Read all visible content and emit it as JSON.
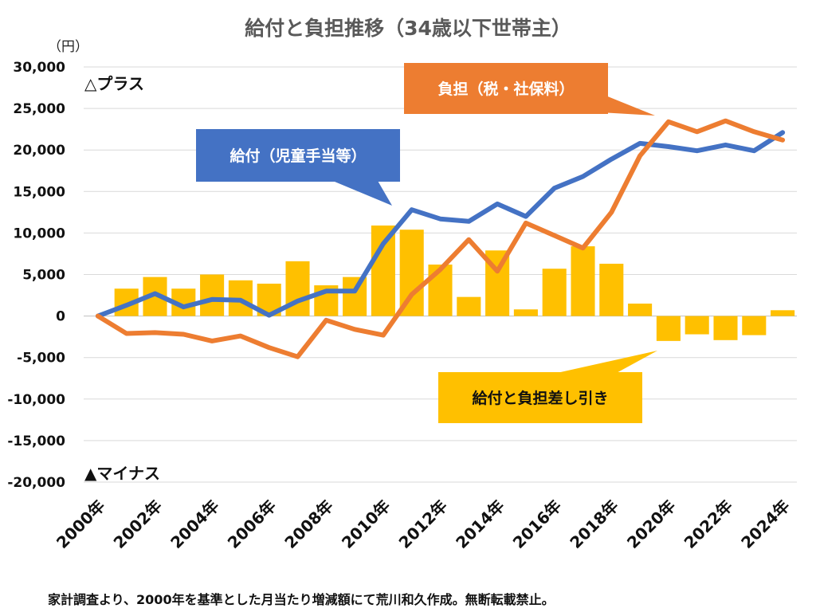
{
  "title": "給付と負担推移（34歳以下世帯主）",
  "unit": "（円）",
  "footer": "家計調査より、2000年を基準とした月当たり増減額にて荒川和久作成。無断転載禁止。",
  "colors": {
    "bar": "#FFC000",
    "benefit": "#4472C4",
    "burden": "#ED7D31"
  },
  "annotations": {
    "plus": "△プラス",
    "minus": "▲マイナス",
    "burden_callout": "負担（税・社保料）",
    "benefit_callout": "給付（児童手当等）",
    "diff_callout": "給付と負担差し引き"
  },
  "chart_data": {
    "type": "bar+line",
    "title": "給付と負担推移（34歳以下世帯主）",
    "ylabel": "（円）",
    "ylim": [
      -20000,
      30000
    ],
    "yticks": [
      30000,
      25000,
      20000,
      15000,
      10000,
      5000,
      0,
      -5000,
      -10000,
      -15000,
      -20000
    ],
    "ytick_labels": [
      "30,000",
      "25,000",
      "20,000",
      "15,000",
      "10,000",
      "5,000",
      "0",
      "-5,000",
      "-10,000",
      "-15,000",
      "-20,000"
    ],
    "grid": true,
    "categories": [
      "2000年",
      "2001年",
      "2002年",
      "2003年",
      "2004年",
      "2005年",
      "2006年",
      "2007年",
      "2008年",
      "2009年",
      "2010年",
      "2011年",
      "2012年",
      "2013年",
      "2014年",
      "2015年",
      "2016年",
      "2017年",
      "2018年",
      "2019年",
      "2020年",
      "2021年",
      "2022年",
      "2023年",
      "2024年"
    ],
    "xtick_labels": [
      "2000年",
      "2002年",
      "2004年",
      "2006年",
      "2008年",
      "2010年",
      "2012年",
      "2014年",
      "2016年",
      "2018年",
      "2020年",
      "2022年",
      "2024年"
    ],
    "series": [
      {
        "name": "給付と負担差し引き",
        "type": "bar",
        "values": [
          0,
          3300,
          4700,
          3300,
          5000,
          4300,
          3900,
          6600,
          3700,
          4700,
          10900,
          10400,
          6200,
          2300,
          7900,
          800,
          5700,
          8400,
          6300,
          1500,
          -3000,
          -2200,
          -2900,
          -2300,
          700
        ]
      },
      {
        "name": "給付（児童手当等）",
        "type": "line",
        "values": [
          0,
          1300,
          2700,
          1100,
          2000,
          1900,
          100,
          1800,
          3000,
          3000,
          8700,
          12800,
          11700,
          11400,
          13500,
          12000,
          15400,
          16800,
          18900,
          20800,
          20400,
          19900,
          20600,
          19900,
          22100
        ]
      },
      {
        "name": "負担（税・社保料）",
        "type": "line",
        "values": [
          0,
          -2100,
          -2000,
          -2200,
          -3000,
          -2400,
          -3800,
          -4900,
          -500,
          -1600,
          -2300,
          2600,
          5600,
          9200,
          5400,
          11200,
          9700,
          8200,
          12500,
          19300,
          23400,
          22200,
          23500,
          22200,
          21200
        ]
      }
    ]
  }
}
